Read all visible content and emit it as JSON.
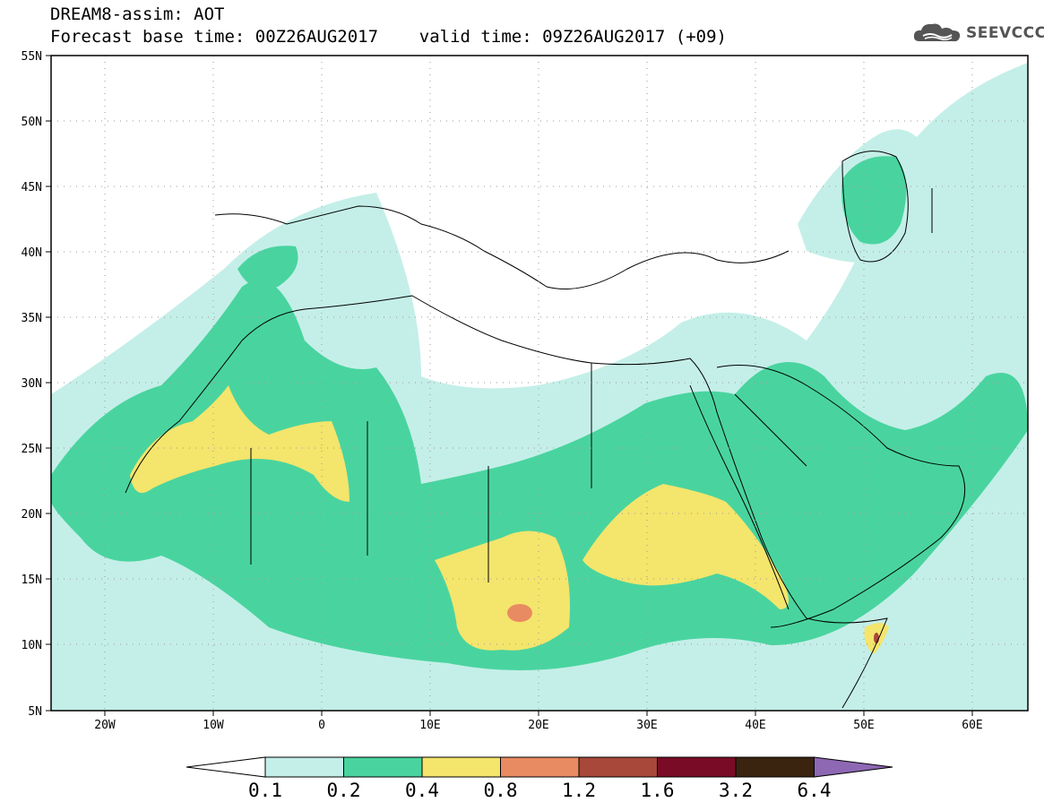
{
  "header": {
    "title": "DREAM8-assim: AOT",
    "subtitle": "Forecast base time: 00Z26AUG2017    valid time: 09Z26AUG2017 (+09)"
  },
  "logo": {
    "text": "SEEVCCC",
    "icon": "cloud-logo-icon"
  },
  "map": {
    "region": "North Africa, Middle East and Europe",
    "lon_range": [
      -25,
      65
    ],
    "lat_range": [
      5,
      55
    ],
    "lat_labels": [
      "55N",
      "50N",
      "45N",
      "40N",
      "35N",
      "30N",
      "25N",
      "20N",
      "15N",
      "10N",
      "5N"
    ],
    "lon_labels": [
      "20W",
      "10W",
      "0",
      "10E",
      "20E",
      "30E",
      "40E",
      "50E",
      "60E"
    ],
    "grid": "dotted"
  },
  "colorbar": {
    "labels": [
      "0.1",
      "0.2",
      "0.4",
      "0.8",
      "1.2",
      "1.6",
      "3.2",
      "6.4"
    ],
    "colors": [
      "#ffffff",
      "#c4efe8",
      "#49d49f",
      "#f4e56c",
      "#e98b62",
      "#a8483a",
      "#7a0b26",
      "#3a2410",
      "#8e68b3"
    ]
  }
}
